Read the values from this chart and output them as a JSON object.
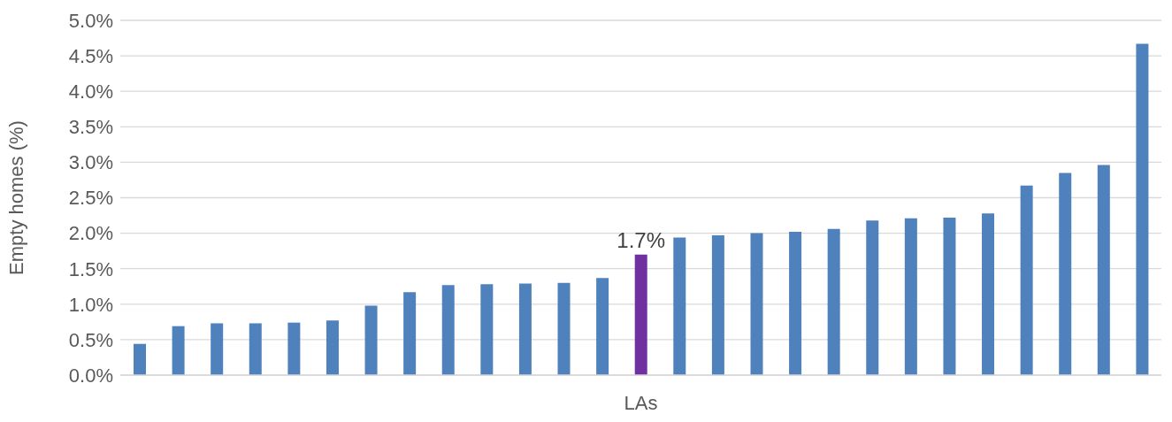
{
  "chart_data": {
    "type": "bar",
    "xlabel": "LAs",
    "ylabel": "Empty homes (%)",
    "categories": [
      null,
      null,
      null,
      null,
      null,
      null,
      null,
      null,
      null,
      null,
      null,
      null,
      null,
      null,
      null,
      null,
      null,
      null,
      null,
      null,
      null,
      null,
      null,
      null,
      null,
      null,
      null
    ],
    "values": [
      0.44,
      0.69,
      0.73,
      0.73,
      0.74,
      0.77,
      0.98,
      1.17,
      1.27,
      1.28,
      1.29,
      1.3,
      1.37,
      1.7,
      1.94,
      1.97,
      2.0,
      2.02,
      2.06,
      2.18,
      2.21,
      2.22,
      2.28,
      2.67,
      2.85,
      2.96,
      4.67
    ],
    "colors": [
      "#4f81bd",
      "#4f81bd",
      "#4f81bd",
      "#4f81bd",
      "#4f81bd",
      "#4f81bd",
      "#4f81bd",
      "#4f81bd",
      "#4f81bd",
      "#4f81bd",
      "#4f81bd",
      "#4f81bd",
      "#4f81bd",
      "#7030a0",
      "#4f81bd",
      "#4f81bd",
      "#4f81bd",
      "#4f81bd",
      "#4f81bd",
      "#4f81bd",
      "#4f81bd",
      "#4f81bd",
      "#4f81bd",
      "#4f81bd",
      "#4f81bd",
      "#4f81bd",
      "#4f81bd"
    ],
    "value_labels": [
      null,
      null,
      null,
      null,
      null,
      null,
      null,
      null,
      null,
      null,
      null,
      null,
      null,
      "1.7%",
      null,
      null,
      null,
      null,
      null,
      null,
      null,
      null,
      null,
      null,
      null,
      null,
      null
    ],
    "ylim": [
      0,
      5
    ],
    "yticks": [
      {
        "value": 0,
        "label": "0.0%"
      },
      {
        "value": 0.5,
        "label": "0.5%"
      },
      {
        "value": 1,
        "label": "1.0%"
      },
      {
        "value": 1.5,
        "label": "1.5%"
      },
      {
        "value": 2,
        "label": "2.0%"
      },
      {
        "value": 2.5,
        "label": "2.5%"
      },
      {
        "value": 3,
        "label": "3.0%"
      },
      {
        "value": 3.5,
        "label": "3.5%"
      },
      {
        "value": 4,
        "label": "4.0%"
      },
      {
        "value": 4.5,
        "label": "4.5%"
      },
      {
        "value": 5,
        "label": "5.0%"
      }
    ],
    "grid": "y",
    "legend": false
  }
}
